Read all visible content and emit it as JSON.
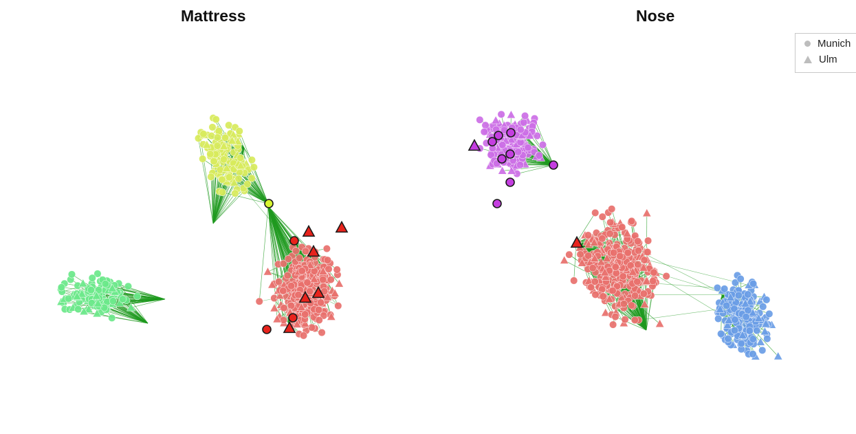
{
  "panels": [
    {
      "title": "Mattress"
    },
    {
      "title": "Nose"
    }
  ],
  "legend": {
    "items": [
      {
        "label": "Munich",
        "shape": "circle"
      },
      {
        "label": "Ulm",
        "shape": "triangle"
      }
    ]
  },
  "colors": {
    "edge": "#1f9a1f",
    "red_cluster": "#e8706c",
    "yellow_cluster": "#d8ea5c",
    "green_cluster": "#6be88a",
    "purple_cluster": "#cc6ee6",
    "blue_cluster": "#6a9de6",
    "legend_symbol": "#bdbdbd",
    "highlight_red": "#e8231c",
    "highlight_purple": "#c43ee0",
    "highlight_yellow": "#d8f530"
  }
}
